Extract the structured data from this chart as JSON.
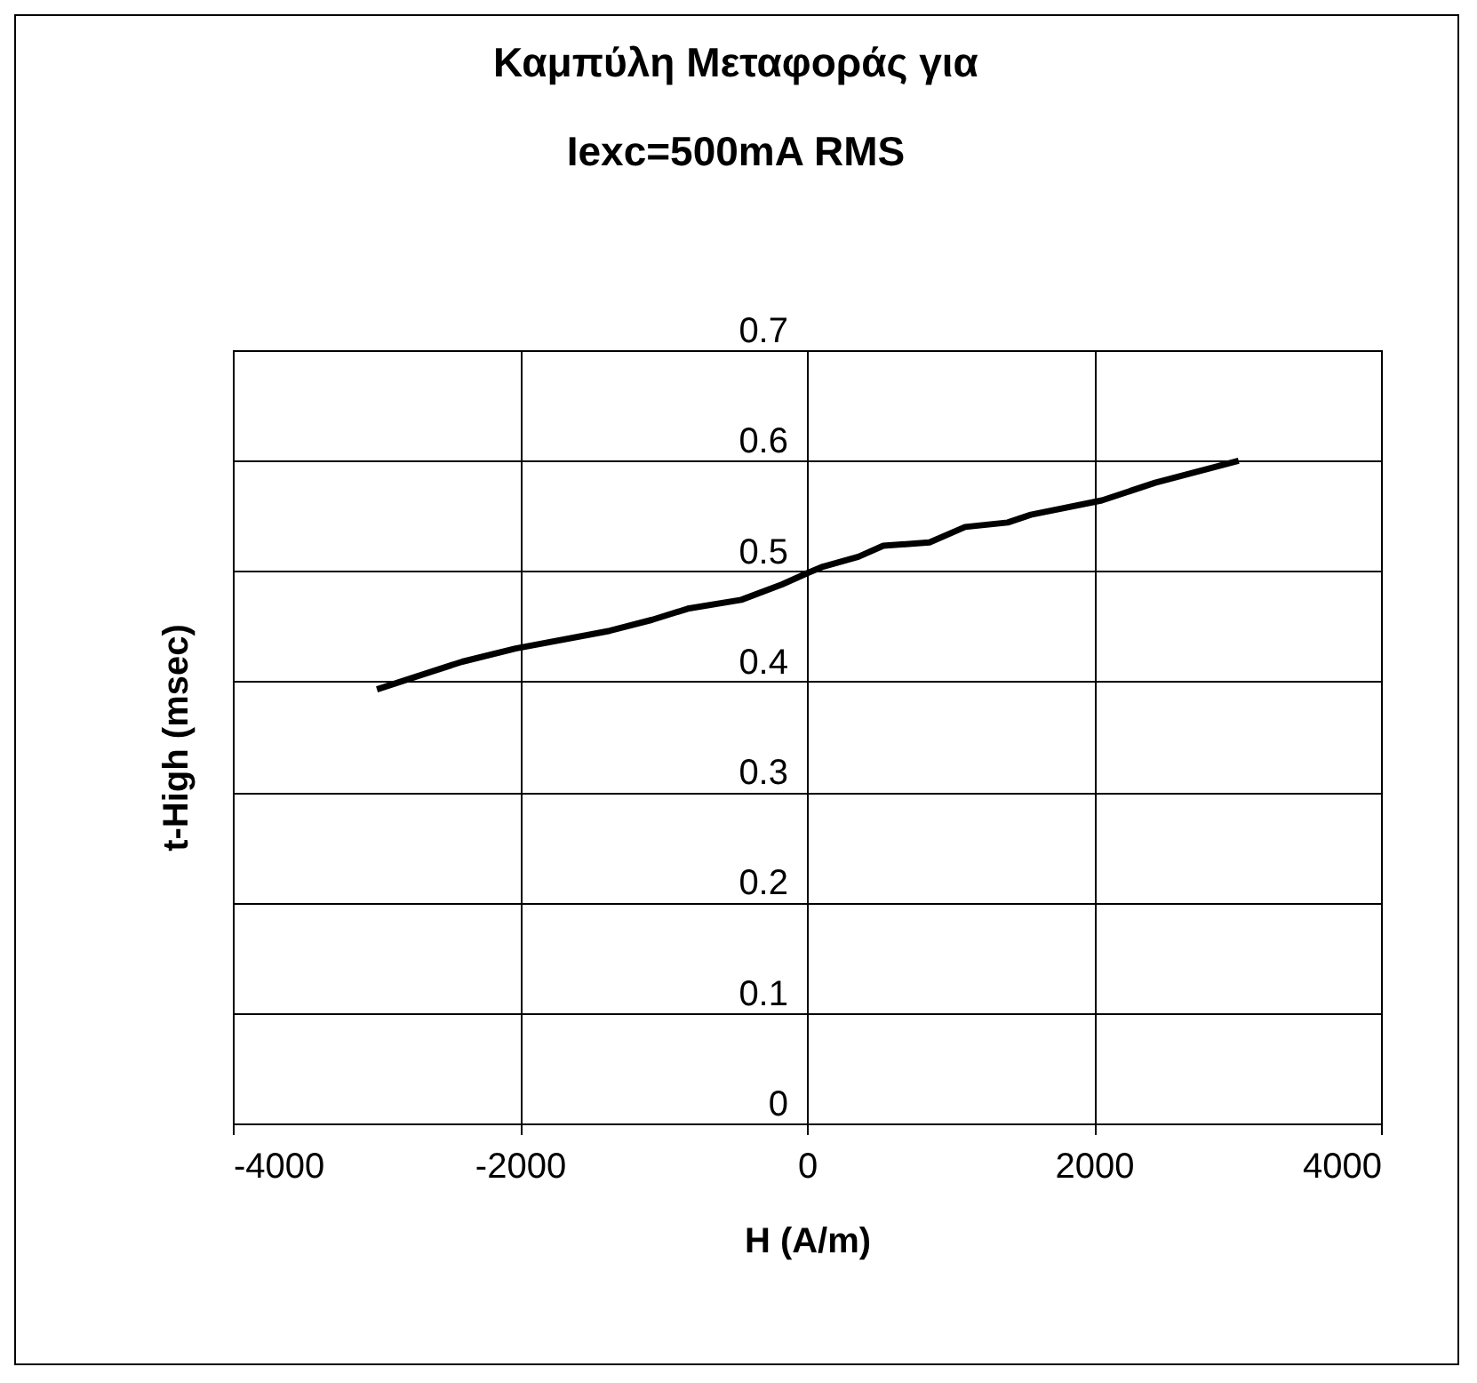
{
  "chart_data": {
    "type": "line",
    "title": "Καμπύλη Μεταφοράς για\nIexc=500mA RMS",
    "xlabel": "H (A/m)",
    "ylabel": "t-High (msec)",
    "x": [
      -2996,
      -2402,
      -2030,
      -1374,
      -1077,
      -830,
      -458,
      -173,
      0,
      111,
      359,
      532,
      854,
      1102,
      1399,
      1560,
      2055,
      2426,
      3008
    ],
    "series": [
      {
        "color": "#000000",
        "values": [
          0.393,
          0.418,
          0.43,
          0.446,
          0.456,
          0.466,
          0.474,
          0.488,
          0.498,
          0.504,
          0.513,
          0.523,
          0.526,
          0.54,
          0.544,
          0.551,
          0.564,
          0.58,
          0.6
        ]
      }
    ],
    "xlim": [
      -4000,
      4000
    ],
    "xticks": [
      -4000,
      -2000,
      0,
      2000,
      4000
    ],
    "ylim": [
      0,
      0.7
    ],
    "yticks": [
      0,
      0.1,
      0.2,
      0.3,
      0.4,
      0.5,
      0.6,
      0.7
    ],
    "grid": true,
    "marker": "none",
    "line_style": "solid"
  }
}
